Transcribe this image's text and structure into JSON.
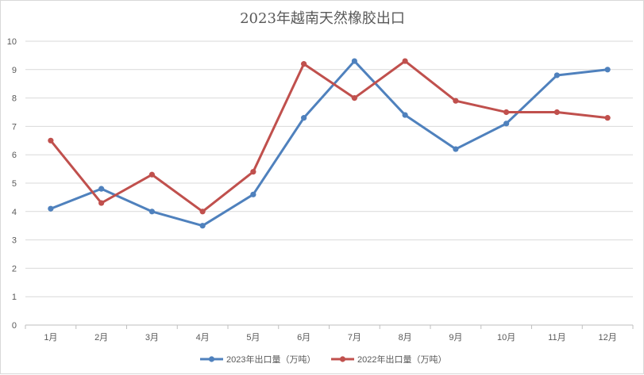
{
  "chart_data": {
    "type": "line",
    "title": "2023年越南天然橡胶出口",
    "categories": [
      "1月",
      "2月",
      "3月",
      "4月",
      "5月",
      "6月",
      "7月",
      "8月",
      "9月",
      "10月",
      "11月",
      "12月"
    ],
    "ylim": [
      0,
      10
    ],
    "yticks": [
      0,
      1,
      2,
      3,
      4,
      5,
      6,
      7,
      8,
      9,
      10
    ],
    "grid": true,
    "legend_position": "bottom",
    "series": [
      {
        "name": "2023年出口量（万吨）",
        "color": "#4f81bd",
        "values": [
          4.1,
          4.8,
          4.0,
          3.5,
          4.6,
          7.3,
          9.3,
          7.4,
          6.2,
          7.1,
          8.8,
          9.0
        ]
      },
      {
        "name": "2022年出口量（万吨）",
        "color": "#c0504d",
        "values": [
          6.5,
          4.3,
          5.3,
          4.0,
          5.4,
          9.2,
          8.0,
          9.3,
          7.9,
          7.5,
          7.5,
          7.3
        ]
      }
    ]
  }
}
